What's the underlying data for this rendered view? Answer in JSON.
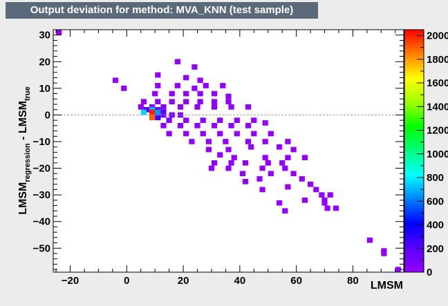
{
  "title": "Output deviation for method: MVA_KNN (test sample)",
  "chart_data": {
    "type": "heatmap",
    "title": "Output deviation for method: MVA_KNN (test sample)",
    "xlabel": "LMSM",
    "ylabel": {
      "base": "LMSM",
      "sub1": "regression",
      "mid": " - LMSM",
      "sub2": "true"
    },
    "xlim": [
      -26,
      98
    ],
    "ylim": [
      -59,
      32
    ],
    "x_ticks": [
      -20,
      0,
      20,
      40,
      60,
      80
    ],
    "y_ticks": [
      30,
      20,
      10,
      0,
      -10,
      -20,
      -30,
      -40,
      -50
    ],
    "z_ticks": [
      0,
      200,
      400,
      600,
      800,
      1000,
      1200,
      1400,
      1600,
      1800,
      2000
    ],
    "zlim": [
      0,
      2050
    ],
    "reference_line_y": 0,
    "palette": "rainbow",
    "cells": [
      {
        "x": -25,
        "y": 30,
        "z": 1
      },
      {
        "x": 95,
        "y": -59,
        "z": 1
      },
      {
        "x": 17,
        "y": 19,
        "z": 1
      },
      {
        "x": 23,
        "y": 17,
        "z": 1
      },
      {
        "x": 10,
        "y": 14,
        "z": 1
      },
      {
        "x": -5,
        "y": 12,
        "z": 1
      },
      {
        "x": 20,
        "y": 13,
        "z": 1
      },
      {
        "x": 25,
        "y": 12,
        "z": 1
      },
      {
        "x": -2,
        "y": 9,
        "z": 1
      },
      {
        "x": 27,
        "y": 10,
        "z": 1
      },
      {
        "x": 33,
        "y": 10,
        "z": 1
      },
      {
        "x": 10,
        "y": 10,
        "z": 1
      },
      {
        "x": 17,
        "y": 10,
        "z": 1
      },
      {
        "x": 23,
        "y": 9,
        "z": 1
      },
      {
        "x": 9,
        "y": 7,
        "z": 3
      },
      {
        "x": 15,
        "y": 7,
        "z": 3
      },
      {
        "x": 20,
        "y": 7,
        "z": 5
      },
      {
        "x": 25,
        "y": 7,
        "z": 4
      },
      {
        "x": 30,
        "y": 7,
        "z": 3
      },
      {
        "x": 35,
        "y": 6,
        "z": 2
      },
      {
        "x": 5,
        "y": 4,
        "z": 8
      },
      {
        "x": 10,
        "y": 4,
        "z": 10
      },
      {
        "x": 15,
        "y": 4,
        "z": 12
      },
      {
        "x": 20,
        "y": 4,
        "z": 12
      },
      {
        "x": 25,
        "y": 4,
        "z": 10
      },
      {
        "x": 30,
        "y": 4,
        "z": 8
      },
      {
        "x": 35,
        "y": 4,
        "z": 6
      },
      {
        "x": 4,
        "y": 2,
        "z": 15
      },
      {
        "x": 8,
        "y": 2,
        "z": 40
      },
      {
        "x": 12,
        "y": 2,
        "z": 30
      },
      {
        "x": 18,
        "y": 2,
        "z": 25
      },
      {
        "x": 24,
        "y": 2,
        "z": 20
      },
      {
        "x": 30,
        "y": 2,
        "z": 15
      },
      {
        "x": 36,
        "y": 2,
        "z": 10
      },
      {
        "x": 42,
        "y": 2,
        "z": 6
      },
      {
        "x": 6,
        "y": 1,
        "z": 200
      },
      {
        "x": 8,
        "y": 1,
        "z": 700
      },
      {
        "x": 10,
        "y": 1,
        "z": 150
      },
      {
        "x": 5,
        "y": 0,
        "z": 750
      },
      {
        "x": 8,
        "y": 0,
        "z": 2000
      },
      {
        "x": 10,
        "y": 0,
        "z": 650
      },
      {
        "x": 12,
        "y": 0,
        "z": 220
      },
      {
        "x": 8,
        "y": -2,
        "z": 1900
      },
      {
        "x": 10,
        "y": -2,
        "z": 250
      },
      {
        "x": 12,
        "y": -1,
        "z": 120
      },
      {
        "x": 15,
        "y": -1,
        "z": 90
      },
      {
        "x": 18,
        "y": -1,
        "z": 60
      },
      {
        "x": 14,
        "y": -3,
        "z": 50
      },
      {
        "x": 20,
        "y": -3,
        "z": 40
      },
      {
        "x": 26,
        "y": -3,
        "z": 30
      },
      {
        "x": 32,
        "y": -3,
        "z": 20
      },
      {
        "x": 38,
        "y": -3,
        "z": 12
      },
      {
        "x": 44,
        "y": -3,
        "z": 6
      },
      {
        "x": 12,
        "y": -5,
        "z": 20
      },
      {
        "x": 18,
        "y": -5,
        "z": 25
      },
      {
        "x": 24,
        "y": -5,
        "z": 22
      },
      {
        "x": 30,
        "y": -5,
        "z": 18
      },
      {
        "x": 36,
        "y": -5,
        "z": 12
      },
      {
        "x": 42,
        "y": -5,
        "z": 6
      },
      {
        "x": 48,
        "y": -4,
        "z": 3
      },
      {
        "x": 14,
        "y": -8,
        "z": 8
      },
      {
        "x": 20,
        "y": -8,
        "z": 10
      },
      {
        "x": 26,
        "y": -8,
        "z": 10
      },
      {
        "x": 32,
        "y": -8,
        "z": 8
      },
      {
        "x": 38,
        "y": -8,
        "z": 6
      },
      {
        "x": 44,
        "y": -8,
        "z": 4
      },
      {
        "x": 50,
        "y": -8,
        "z": 2
      },
      {
        "x": 22,
        "y": -11,
        "z": 4
      },
      {
        "x": 28,
        "y": -11,
        "z": 5
      },
      {
        "x": 34,
        "y": -11,
        "z": 4
      },
      {
        "x": 42,
        "y": -11,
        "z": 3
      },
      {
        "x": 48,
        "y": -11,
        "z": 2
      },
      {
        "x": 56,
        "y": -11,
        "z": 1
      },
      {
        "x": 28,
        "y": -14,
        "z": 2
      },
      {
        "x": 35,
        "y": -14,
        "z": 2
      },
      {
        "x": 43,
        "y": -13,
        "z": 2
      },
      {
        "x": 53,
        "y": -13,
        "z": 1
      },
      {
        "x": 58,
        "y": -14,
        "z": 1
      },
      {
        "x": 32,
        "y": -16,
        "z": 1
      },
      {
        "x": 37,
        "y": -17,
        "z": 1
      },
      {
        "x": 48,
        "y": -17,
        "z": 1
      },
      {
        "x": 56,
        "y": -17,
        "z": 1
      },
      {
        "x": 62,
        "y": -17,
        "z": 1
      },
      {
        "x": 30,
        "y": -19,
        "z": 1
      },
      {
        "x": 36,
        "y": -19,
        "z": 1
      },
      {
        "x": 41,
        "y": -19,
        "z": 1
      },
      {
        "x": 49,
        "y": -19,
        "z": 1
      },
      {
        "x": 54,
        "y": -19,
        "z": 1
      },
      {
        "x": 29,
        "y": -21,
        "z": 1
      },
      {
        "x": 35,
        "y": -21,
        "z": 1
      },
      {
        "x": 47,
        "y": -21,
        "z": 1
      },
      {
        "x": 55,
        "y": -21,
        "z": 1
      },
      {
        "x": 40,
        "y": -23,
        "z": 1
      },
      {
        "x": 50,
        "y": -23,
        "z": 1
      },
      {
        "x": 58,
        "y": -23,
        "z": 1
      },
      {
        "x": 46,
        "y": -25,
        "z": 1
      },
      {
        "x": 61,
        "y": -25,
        "z": 1
      },
      {
        "x": 41,
        "y": -26,
        "z": 1
      },
      {
        "x": 64,
        "y": -27,
        "z": 1
      },
      {
        "x": 56,
        "y": -28,
        "z": 1
      },
      {
        "x": 47,
        "y": -29,
        "z": 1
      },
      {
        "x": 66,
        "y": -29,
        "z": 1
      },
      {
        "x": 68,
        "y": -31,
        "z": 1
      },
      {
        "x": 71,
        "y": -31,
        "z": 1
      },
      {
        "x": 62,
        "y": -33,
        "z": 1
      },
      {
        "x": 69,
        "y": -33,
        "z": 1
      },
      {
        "x": 53,
        "y": -34,
        "z": 1
      },
      {
        "x": 69,
        "y": -34,
        "z": 1
      },
      {
        "x": 70,
        "y": -36,
        "z": 1
      },
      {
        "x": 73,
        "y": -36,
        "z": 1
      },
      {
        "x": 55,
        "y": -37,
        "z": 1
      },
      {
        "x": 85,
        "y": -48,
        "z": 1
      },
      {
        "x": 90,
        "y": -52,
        "z": 1
      },
      {
        "x": 90,
        "y": -53,
        "z": 1
      }
    ]
  }
}
